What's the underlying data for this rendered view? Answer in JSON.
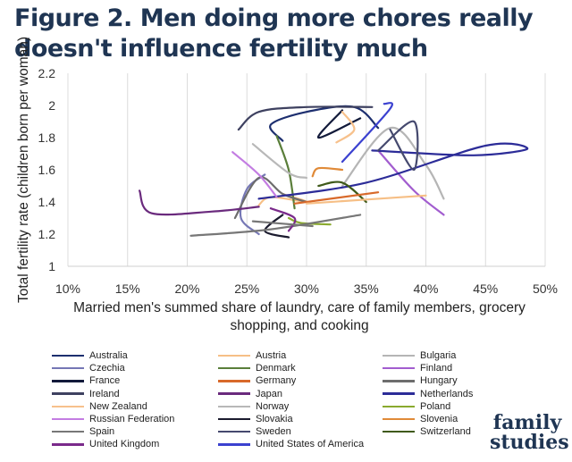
{
  "chart_data": {
    "type": "line",
    "title": "Figure 2. Men doing more chores really doesn't influence fertility much",
    "xlabel": "Married men's summed share of laundry, care of family members, grocery shopping, and cooking",
    "ylabel": "Total fertility rate (children born per woman)",
    "xlim": [
      0.1,
      0.5
    ],
    "ylim": [
      1.0,
      2.2
    ],
    "xticks": [
      "10%",
      "15%",
      "20%",
      "25%",
      "30%",
      "35%",
      "40%",
      "45%",
      "50%"
    ],
    "yticks": [
      "1",
      "1.2",
      "1.4",
      "1.6",
      "1.8",
      "2",
      "2.2"
    ],
    "grid": "vertical",
    "legend_position": "bottom",
    "series": [
      {
        "name": "Australia",
        "color": "#1d2f6f",
        "x": [
          0.28,
          0.27,
          0.3,
          0.34,
          0.36
        ],
        "y": [
          1.78,
          1.88,
          1.96,
          1.99,
          1.86
        ]
      },
      {
        "name": "Austria",
        "color": "#f6bf86",
        "x": [
          0.26,
          0.27,
          0.3,
          0.28
        ],
        "y": [
          1.38,
          1.43,
          1.4,
          1.45
        ]
      },
      {
        "name": "Bulgaria",
        "color": "#b5b5b5",
        "x": [
          0.33,
          0.37,
          0.4,
          0.415
        ],
        "y": [
          1.5,
          1.86,
          1.63,
          1.42
        ]
      },
      {
        "name": "Czechia",
        "color": "#7577b5",
        "x": [
          0.265,
          0.25,
          0.245,
          0.26
        ],
        "y": [
          1.57,
          1.48,
          1.3,
          1.2
        ]
      },
      {
        "name": "Denmark",
        "color": "#5a7e3a",
        "x": [
          0.275,
          0.285,
          0.29
        ],
        "y": [
          1.81,
          1.6,
          1.36
        ]
      },
      {
        "name": "Finland",
        "color": "#a25dcf",
        "x": [
          0.36,
          0.39,
          0.415
        ],
        "y": [
          1.72,
          1.47,
          1.32
        ]
      },
      {
        "name": "France",
        "color": "#121a3a",
        "x": [
          0.33,
          0.31,
          0.345
        ],
        "y": [
          1.97,
          1.8,
          1.92
        ]
      },
      {
        "name": "Hungary",
        "color": "#6d6d6d",
        "x": [
          0.24,
          0.26,
          0.28,
          0.3
        ],
        "y": [
          1.3,
          1.55,
          1.45,
          1.4
        ]
      },
      {
        "name": "Ireland",
        "color": "#3e4160",
        "x": [
          0.243,
          0.26,
          0.3,
          0.355
        ],
        "y": [
          1.85,
          1.96,
          1.99,
          1.99
        ]
      },
      {
        "name": "Japan",
        "color": "#6a2a7d",
        "x": [
          0.16,
          0.17,
          0.22,
          0.26
        ],
        "y": [
          1.47,
          1.33,
          1.34,
          1.37
        ]
      },
      {
        "name": "Netherlands",
        "color": "#2c2c98",
        "x": [
          0.26,
          0.35,
          0.45,
          0.485,
          0.44,
          0.355
        ],
        "y": [
          1.42,
          1.52,
          1.75,
          1.73,
          1.69,
          1.72
        ]
      },
      {
        "name": "New Zealand",
        "color": "#f7c18c",
        "x": [
          0.325,
          0.34,
          0.33
        ],
        "y": [
          1.77,
          1.85,
          1.96
        ]
      },
      {
        "name": "Norway",
        "color": "#b8b8b8",
        "x": [
          0.255,
          0.285,
          0.3
        ],
        "y": [
          1.76,
          1.58,
          1.55
        ]
      },
      {
        "name": "Poland",
        "color": "#8aaa2e",
        "x": [
          0.285,
          0.295,
          0.32
        ],
        "y": [
          1.3,
          1.27,
          1.26
        ]
      },
      {
        "name": "Russian Federation",
        "color": "#c37de2",
        "x": [
          0.238,
          0.26,
          0.275
        ],
        "y": [
          1.71,
          1.57,
          1.43
        ]
      },
      {
        "name": "Slovakia",
        "color": "#1b1b2e",
        "x": [
          0.28,
          0.265,
          0.285
        ],
        "y": [
          1.32,
          1.22,
          1.18
        ]
      },
      {
        "name": "Slovenia",
        "color": "#e08a38",
        "x": [
          0.305,
          0.31,
          0.33
        ],
        "y": [
          1.56,
          1.61,
          1.6
        ]
      },
      {
        "name": "Spain",
        "color": "#777777",
        "x": [
          0.203,
          0.27,
          0.345
        ],
        "y": [
          1.19,
          1.23,
          1.32
        ]
      },
      {
        "name": "Sweden",
        "color": "#45496e",
        "x": [
          0.37,
          0.39,
          0.39,
          0.36
        ],
        "y": [
          1.85,
          1.6,
          1.9,
          1.72
        ]
      },
      {
        "name": "Switzerland",
        "color": "#3f5a1a",
        "x": [
          0.31,
          0.33,
          0.35
        ],
        "y": [
          1.5,
          1.52,
          1.4
        ]
      },
      {
        "name": "United Kingdom",
        "color": "#7a2a8b",
        "x": [
          0.27,
          0.29,
          0.285
        ],
        "y": [
          1.36,
          1.3,
          1.22
        ]
      },
      {
        "name": "United States of America",
        "color": "#3b41d0",
        "x": [
          0.33,
          0.37,
          0.365
        ],
        "y": [
          1.65,
          1.98,
          2.01
        ]
      }
    ],
    "extra_segments": [
      {
        "name": "Germany",
        "color": "#d8692a",
        "x": [
          0.29,
          0.36
        ],
        "y": [
          1.39,
          1.46
        ]
      },
      {
        "name": "Austria-b",
        "color": "#f6bf86",
        "x": [
          0.3,
          0.4
        ],
        "y": [
          1.39,
          1.44
        ]
      },
      {
        "name": "Spain-b",
        "color": "#777777",
        "x": [
          0.255,
          0.305
        ],
        "y": [
          1.28,
          1.25
        ]
      }
    ]
  },
  "legend": [
    {
      "label": "Australia",
      "color": "#1d2f6f"
    },
    {
      "label": "Austria",
      "color": "#f6bf86"
    },
    {
      "label": "Bulgaria",
      "color": "#b5b5b5"
    },
    {
      "label": "Czechia",
      "color": "#7577b5"
    },
    {
      "label": "Denmark",
      "color": "#5a7e3a"
    },
    {
      "label": "Finland",
      "color": "#a25dcf"
    },
    {
      "label": "France",
      "color": "#121a3a"
    },
    {
      "label": "Germany",
      "color": "#d8692a"
    },
    {
      "label": "Hungary",
      "color": "#6d6d6d"
    },
    {
      "label": "Ireland",
      "color": "#3e4160"
    },
    {
      "label": "Japan",
      "color": "#6a2a7d"
    },
    {
      "label": "Netherlands",
      "color": "#2c2c98"
    },
    {
      "label": "New Zealand",
      "color": "#f7c18c"
    },
    {
      "label": "Norway",
      "color": "#b8b8b8"
    },
    {
      "label": "Poland",
      "color": "#8aaa2e"
    },
    {
      "label": "Russian Federation",
      "color": "#c37de2"
    },
    {
      "label": "Slovakia",
      "color": "#1b1b2e"
    },
    {
      "label": "Slovenia",
      "color": "#e08a38"
    },
    {
      "label": "Spain",
      "color": "#777777"
    },
    {
      "label": "Sweden",
      "color": "#45496e"
    },
    {
      "label": "Switzerland",
      "color": "#3f5a1a"
    },
    {
      "label": "United Kingdom",
      "color": "#7a2a8b"
    },
    {
      "label": "United States of America",
      "color": "#3b41d0"
    }
  ],
  "brand": {
    "line1": "family",
    "line2": "studies"
  }
}
